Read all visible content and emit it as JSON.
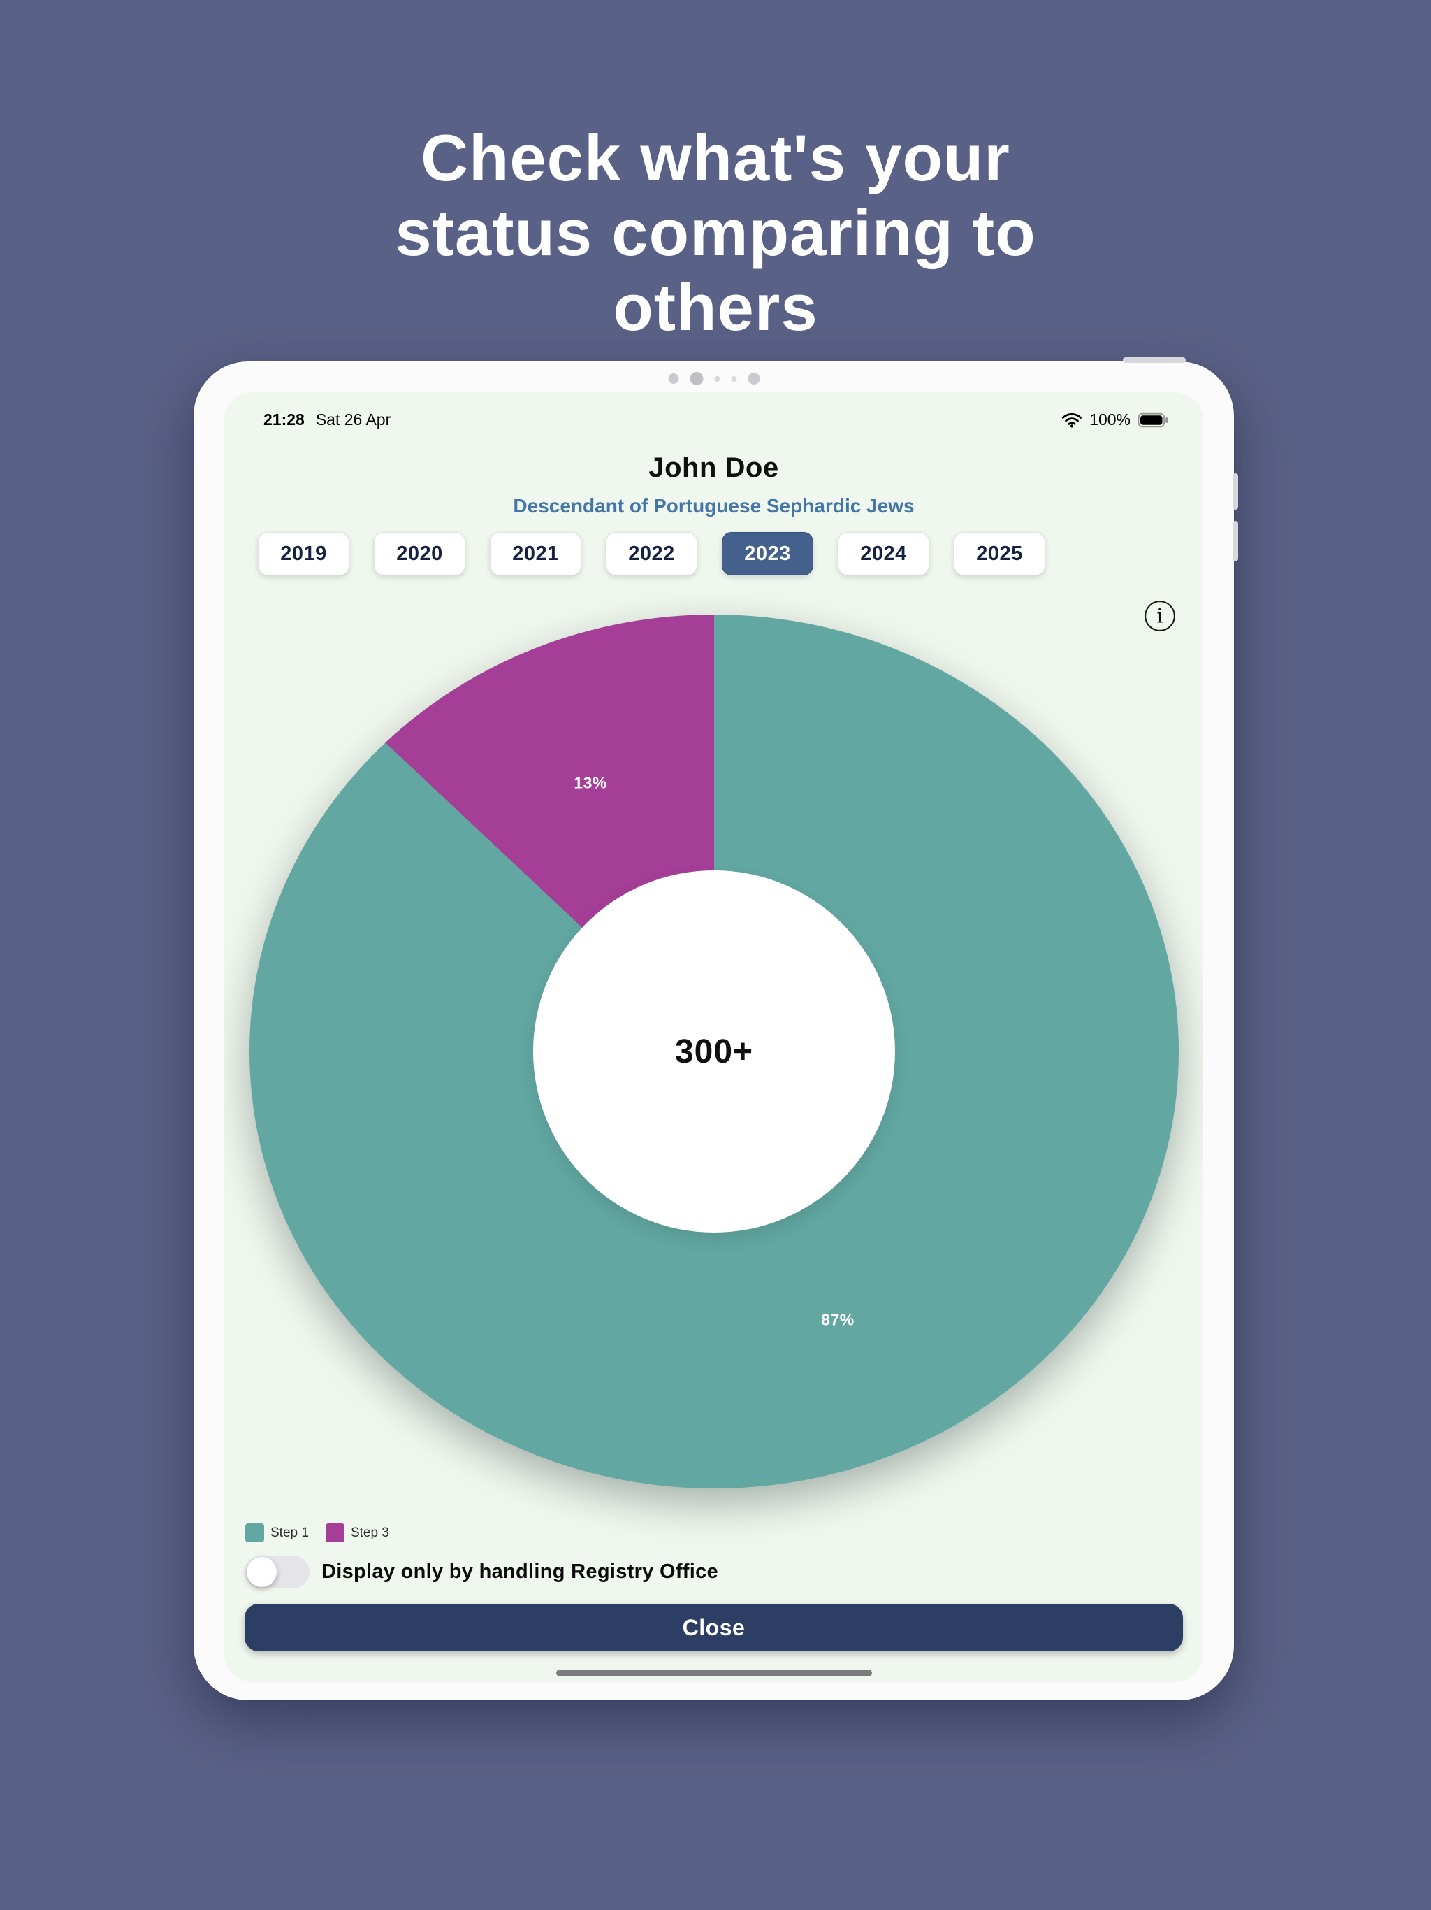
{
  "headline": {
    "lines": [
      "Check what's your",
      "status comparing to",
      "others"
    ]
  },
  "device": {
    "status_bar": {
      "time": "21:28",
      "date": "Sat 26 Apr",
      "battery_percent": "100%",
      "icons": [
        "wifi-icon",
        "battery-icon"
      ]
    },
    "profile": {
      "name": "John Doe",
      "subtitle": "Descendant of Portuguese Sephardic Jews"
    },
    "year_tabs": [
      {
        "label": "2019",
        "selected": false
      },
      {
        "label": "2020",
        "selected": false
      },
      {
        "label": "2021",
        "selected": false
      },
      {
        "label": "2022",
        "selected": false
      },
      {
        "label": "2023",
        "selected": true
      },
      {
        "label": "2024",
        "selected": false
      },
      {
        "label": "2025",
        "selected": false
      }
    ],
    "info_icon": "i",
    "toggle": {
      "label": "Display only by handling Registry Office",
      "state": "off"
    },
    "close_button": "Close"
  },
  "chart_data": {
    "type": "pie",
    "donut": true,
    "title": "",
    "center_label": "300+",
    "start_angle_deg": 0,
    "direction": "clockwise",
    "slices": [
      {
        "label": "Step 1",
        "value": 87,
        "display": "87%",
        "color": "#62a7a2"
      },
      {
        "label": "Step 3",
        "value": 13,
        "display": "13%",
        "color": "#a43e97"
      }
    ],
    "legend": [
      {
        "label": "Step 1",
        "color": "#62a7a2"
      },
      {
        "label": "Step 3",
        "color": "#a43e97"
      }
    ],
    "legend_position": "bottom-left"
  },
  "colors": {
    "background": "#5a6186",
    "screen_bg": "#f0f7ee",
    "accent_selected": "#44618e",
    "subtitle_blue": "#4477a7",
    "close_navy": "#2c3e64",
    "teal": "#62a7a2",
    "magenta": "#a43e97"
  }
}
